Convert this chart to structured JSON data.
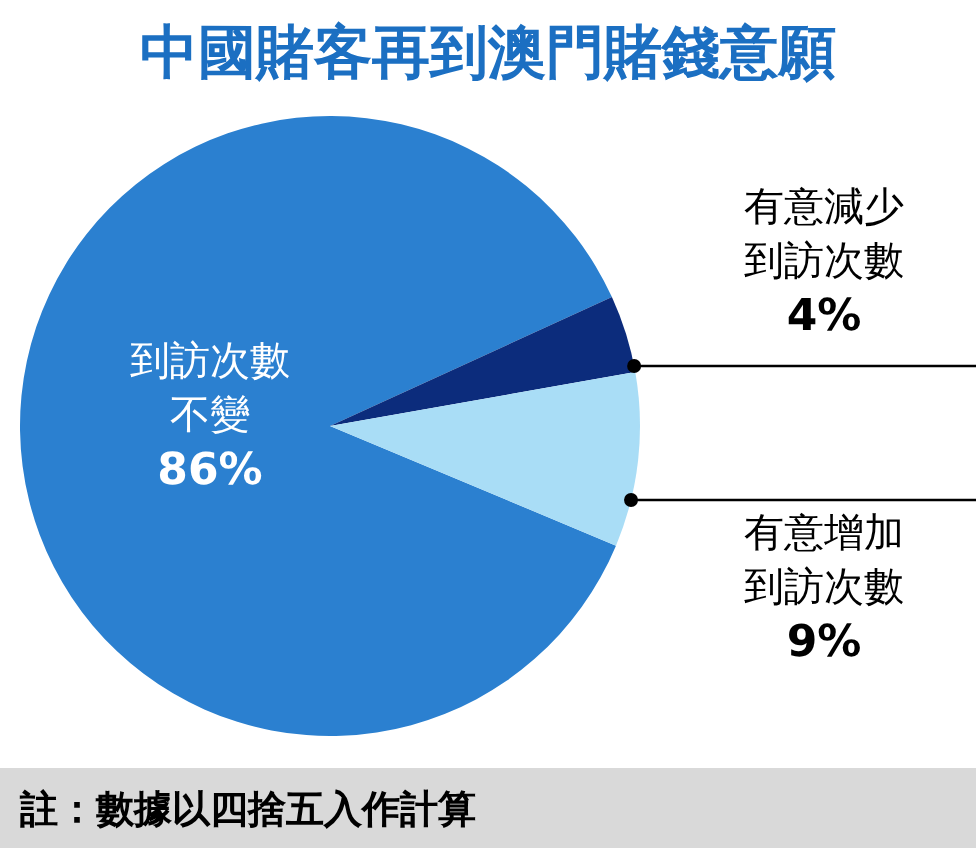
{
  "chart_data": {
    "type": "pie",
    "title": "中國賭客再到澳門賭錢意願",
    "categories": [
      "到訪次數不變",
      "有意減少到訪次數",
      "有意增加到訪次數"
    ],
    "values": [
      86,
      4,
      9
    ],
    "value_labels": [
      "86%",
      "4%",
      "9%"
    ],
    "colors": [
      "#2b80d0",
      "#0c2c7c",
      "#a9ddf6"
    ],
    "annotations": [
      "註：數據以四捨五入作計算"
    ]
  }
}
